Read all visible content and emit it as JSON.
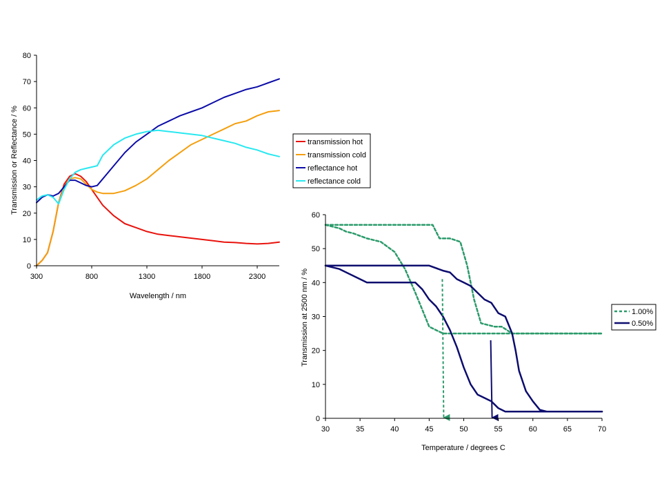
{
  "chart_data": [
    {
      "type": "line",
      "title": "",
      "xlabel": "Wavelength / nm",
      "ylabel": "Transmission or Reflectance / %",
      "xlim": [
        300,
        2500
      ],
      "ylim": [
        0,
        80
      ],
      "x_ticks": [
        "300",
        "800",
        "1300",
        "1800",
        "2300"
      ],
      "y_ticks": [
        "0",
        "10",
        "20",
        "30",
        "40",
        "50",
        "60",
        "70",
        "80"
      ],
      "grid": false,
      "legend": "right",
      "series": [
        {
          "name": "transmission hot",
          "color": "#e8120c",
          "dash": "solid",
          "x": [
            300,
            350,
            400,
            450,
            500,
            550,
            600,
            650,
            700,
            750,
            800,
            850,
            900,
            1000,
            1100,
            1200,
            1300,
            1400,
            1500,
            1600,
            1700,
            1800,
            1900,
            2000,
            2100,
            2200,
            2300,
            2400,
            2500
          ],
          "y": [
            0,
            2,
            5,
            13,
            24,
            31,
            34,
            35,
            34,
            32,
            29,
            26,
            23,
            19,
            16,
            14.5,
            13,
            12,
            11.5,
            11,
            10.5,
            10,
            9.5,
            9,
            8.8,
            8.5,
            8.3,
            8.5,
            9
          ]
        },
        {
          "name": "transmission cold",
          "color": "#f49e0c",
          "dash": "solid",
          "x": [
            300,
            350,
            400,
            450,
            500,
            550,
            600,
            650,
            700,
            750,
            800,
            850,
            900,
            950,
            1000,
            1100,
            1200,
            1300,
            1400,
            1500,
            1600,
            1700,
            1800,
            1900,
            2000,
            2100,
            2200,
            2300,
            2400,
            2500
          ],
          "y": [
            0,
            2,
            5,
            13,
            24,
            30,
            33,
            33.5,
            33,
            31,
            29,
            28,
            27.5,
            27.5,
            27.5,
            28.5,
            30.5,
            33,
            36.5,
            40,
            43,
            46,
            48,
            50,
            52,
            54,
            55,
            57,
            58.5,
            59
          ]
        },
        {
          "name": "reflectance hot",
          "color": "#0c0ca8",
          "dash": "solid",
          "x": [
            300,
            350,
            400,
            450,
            500,
            550,
            600,
            650,
            700,
            750,
            800,
            850,
            900,
            1000,
            1100,
            1200,
            1300,
            1400,
            1500,
            1600,
            1700,
            1800,
            1900,
            2000,
            2100,
            2200,
            2300,
            2400,
            2500
          ],
          "y": [
            24,
            26,
            27,
            26.5,
            27.5,
            30,
            32.5,
            32.5,
            31.5,
            30.5,
            30,
            30.5,
            33,
            38,
            43,
            47,
            50,
            53,
            55,
            57,
            58.5,
            60,
            62,
            64,
            65.5,
            67,
            68,
            69.5,
            71
          ]
        },
        {
          "name": "reflectance cold",
          "color": "#28e8f0",
          "dash": "solid",
          "x": [
            300,
            350,
            400,
            450,
            500,
            550,
            600,
            650,
            700,
            750,
            800,
            850,
            900,
            1000,
            1100,
            1200,
            1300,
            1400,
            1500,
            1600,
            1700,
            1800,
            1900,
            2000,
            2100,
            2200,
            2300,
            2400,
            2500
          ],
          "y": [
            25,
            26.5,
            27,
            26,
            23.5,
            29,
            33,
            35.5,
            36.5,
            37,
            37.5,
            38,
            42,
            46,
            48.5,
            50,
            51,
            51.5,
            51,
            50.5,
            50,
            49.5,
            48.5,
            47.5,
            46.5,
            45,
            44,
            42.5,
            41.5
          ]
        }
      ]
    },
    {
      "type": "line",
      "title": "",
      "xlabel": "Temperature / degrees C",
      "ylabel": "Transmission at 2500 nm / %",
      "xlim": [
        30,
        70
      ],
      "ylim": [
        0,
        60
      ],
      "x_ticks": [
        "30",
        "35",
        "40",
        "45",
        "50",
        "55",
        "60",
        "65",
        "70"
      ],
      "y_ticks": [
        "0",
        "10",
        "20",
        "30",
        "40",
        "50",
        "60"
      ],
      "grid": false,
      "legend": "right",
      "series": [
        {
          "name": "1.00%",
          "color": "#2a9a6a",
          "dash": "dotted",
          "x": [
            30,
            45.5,
            46.5,
            48,
            49.5,
            50.5,
            51.5,
            52.5,
            54.5,
            55.5,
            57,
            70
          ],
          "y": [
            57,
            57,
            53,
            53,
            52,
            45,
            35,
            28,
            27,
            27,
            25,
            25
          ]
        },
        {
          "name": "1.00%",
          "color": "#2a9a6a",
          "dash": "dotted",
          "x": [
            30,
            32,
            33,
            34,
            36,
            38,
            40,
            41.5,
            43,
            44,
            45,
            46,
            47,
            48,
            70
          ],
          "y": [
            57,
            56,
            55,
            54.5,
            53,
            52,
            49,
            44,
            37,
            32,
            27,
            26,
            25,
            25,
            25
          ]
        },
        {
          "name": "0.50%",
          "color": "#0c0c6e",
          "dash": "solid",
          "x": [
            30,
            45,
            47,
            48,
            49,
            50,
            51,
            52,
            53,
            54,
            55,
            56,
            57,
            57.5,
            58,
            59,
            60,
            61,
            62,
            70
          ],
          "y": [
            45,
            45,
            43.5,
            43,
            41,
            40,
            39,
            37,
            35,
            34,
            31,
            30,
            25,
            20,
            14,
            8,
            5,
            2.5,
            2,
            2
          ]
        },
        {
          "name": "0.50%",
          "color": "#0c0c6e",
          "dash": "solid",
          "x": [
            30,
            32,
            34,
            36,
            38,
            40,
            43,
            44,
            45,
            46,
            47,
            48,
            49,
            50,
            51,
            52,
            53,
            54,
            55,
            56,
            57,
            70
          ],
          "y": [
            45,
            44,
            42,
            40,
            40,
            40,
            40,
            38,
            35,
            33,
            30,
            26,
            21,
            15,
            10,
            7,
            6,
            5,
            3,
            2,
            2,
            2
          ]
        }
      ],
      "annotations": [
        {
          "type": "arrow",
          "color": "#2a9a6a",
          "dash": "dotted",
          "x": 47,
          "y_from": 41,
          "y_to": 0
        },
        {
          "type": "arrow",
          "color": "#0c0c6e",
          "dash": "solid",
          "x": 54,
          "y_from": 23,
          "y_to": 0
        }
      ]
    }
  ]
}
